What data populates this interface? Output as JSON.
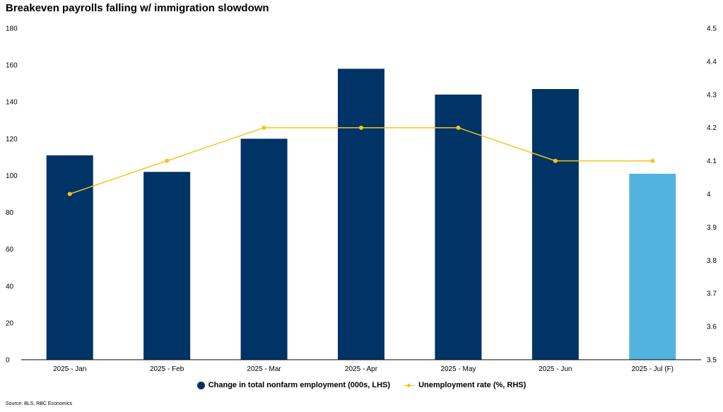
{
  "chart_data": {
    "type": "bar",
    "title": "Breakeven payrolls falling w/ immigration slowdown",
    "categories": [
      "2025 - Jan",
      "2025 - Feb",
      "2025 - Mar",
      "2025 - Apr",
      "2025 - May",
      "2025 - Jun",
      "2025 - Jul (F)"
    ],
    "series": [
      {
        "name": "Change in total nonfarm employment (000s, LHS)",
        "type": "bar",
        "axis": "left",
        "values": [
          111,
          102,
          120,
          158,
          144,
          147,
          101
        ],
        "color": "#003366",
        "highlight_color": "#52B3E0",
        "highlight_index": 6
      },
      {
        "name": "Unemployment rate (%, RHS)",
        "type": "line",
        "axis": "right",
        "values": [
          4.0,
          4.1,
          4.2,
          4.2,
          4.2,
          4.1,
          4.1
        ],
        "color": "#F5C518"
      }
    ],
    "ylim_left": [
      0,
      180
    ],
    "yticks_left": [
      "0",
      "20",
      "40",
      "60",
      "80",
      "100",
      "120",
      "140",
      "160",
      "180"
    ],
    "ylim_right": [
      3.5,
      4.5
    ],
    "yticks_right": [
      "3.5",
      "3.6",
      "3.7",
      "3.8",
      "3.9",
      "4",
      "4.1",
      "4.2",
      "4.3",
      "4.4",
      "4.5"
    ],
    "grid": false,
    "legend_position": "bottom",
    "source": "Source: BLS, RBC Economics"
  }
}
